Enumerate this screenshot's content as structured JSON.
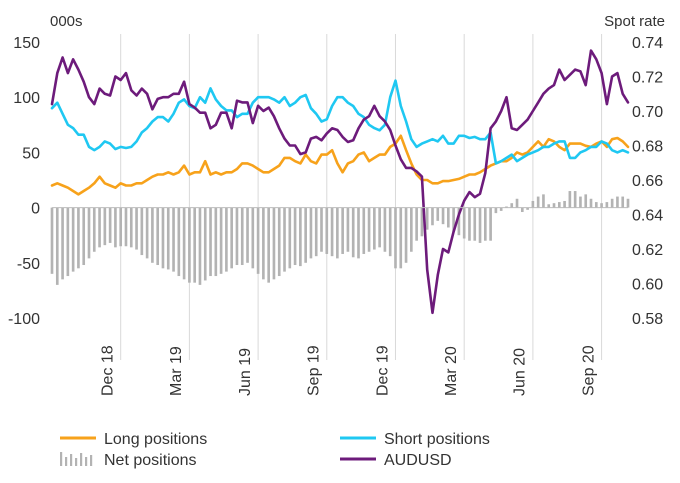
{
  "chart_data": {
    "type": "line",
    "title": "",
    "left_axis": {
      "unit": "000s",
      "ylim": [
        -100,
        150
      ],
      "ticks": [
        -100,
        -50,
        0,
        50,
        100,
        150
      ]
    },
    "right_axis": {
      "unit": "Spot rate",
      "ylim": [
        0.58,
        0.74
      ],
      "ticks": [
        0.58,
        0.6,
        0.62,
        0.64,
        0.66,
        0.68,
        0.7,
        0.72,
        0.74
      ]
    },
    "x_ticks": [
      "Dec 18",
      "Mar 19",
      "Jun 19",
      "Sep 19",
      "Dec 19",
      "Mar 20",
      "Jun 20",
      "Sep 20"
    ],
    "x_tick_positions": [
      10.5,
      23.5,
      36.5,
      49.5,
      62.5,
      75.5,
      88.5,
      101.5
    ],
    "x_range": [
      0,
      109
    ],
    "grid": "vertical",
    "legend_position": "bottom",
    "series": [
      {
        "name": "Long positions",
        "axis": "left",
        "color": "#f7a21b",
        "style": "line",
        "values": [
          20,
          22,
          20,
          18,
          15,
          12,
          15,
          18,
          22,
          28,
          22,
          20,
          18,
          22,
          20,
          20,
          22,
          22,
          25,
          28,
          30,
          30,
          32,
          30,
          32,
          38,
          30,
          32,
          32,
          42,
          30,
          32,
          30,
          32,
          32,
          35,
          40,
          40,
          38,
          35,
          32,
          32,
          35,
          38,
          45,
          45,
          42,
          40,
          48,
          42,
          40,
          48,
          48,
          52,
          40,
          32,
          40,
          42,
          48,
          50,
          42,
          45,
          48,
          48,
          55,
          58,
          65,
          52,
          40,
          30,
          25,
          25,
          22,
          22,
          24,
          24,
          25,
          26,
          28,
          30,
          30,
          32,
          35,
          38,
          40,
          42,
          42,
          45,
          50,
          48,
          50,
          55,
          60,
          55,
          62,
          60,
          55,
          52,
          58,
          58,
          58,
          56,
          55,
          58,
          60,
          55,
          62,
          63,
          60,
          55
        ]
      },
      {
        "name": "Short positions",
        "axis": "left",
        "color": "#1fc8f2",
        "style": "line",
        "values": [
          90,
          95,
          85,
          75,
          72,
          66,
          66,
          55,
          52,
          55,
          60,
          58,
          53,
          55,
          54,
          55,
          60,
          68,
          72,
          78,
          82,
          82,
          78,
          85,
          95,
          98,
          92,
          90,
          100,
          95,
          108,
          98,
          92,
          88,
          88,
          82,
          85,
          85,
          95,
          100,
          100,
          100,
          98,
          95,
          100,
          92,
          95,
          100,
          102,
          90,
          85,
          78,
          80,
          92,
          100,
          100,
          95,
          92,
          85,
          82,
          75,
          72,
          70,
          75,
          100,
          115,
          92,
          78,
          62,
          55,
          58,
          60,
          62,
          60,
          65,
          58,
          58,
          65,
          65,
          63,
          64,
          62,
          62,
          68,
          40,
          42,
          45,
          48,
          42,
          45,
          48,
          50,
          52,
          55,
          55,
          58,
          60,
          60,
          45,
          45,
          50,
          52,
          55,
          55,
          60,
          58,
          52,
          50,
          52,
          50
        ]
      },
      {
        "name": "Net positions",
        "axis": "left",
        "color": "#b3b3b3",
        "style": "bars",
        "values": [
          -60,
          -70,
          -65,
          -62,
          -58,
          -55,
          -52,
          -46,
          -40,
          -36,
          -34,
          -32,
          -36,
          -35,
          -35,
          -36,
          -38,
          -43,
          -46,
          -50,
          -52,
          -55,
          -56,
          -58,
          -62,
          -65,
          -68,
          -68,
          -70,
          -66,
          -62,
          -62,
          -60,
          -58,
          -55,
          -52,
          -52,
          -50,
          -55,
          -60,
          -65,
          -68,
          -65,
          -62,
          -58,
          -55,
          -52,
          -53,
          -50,
          -46,
          -44,
          -40,
          -42,
          -44,
          -46,
          -42,
          -40,
          -45,
          -46,
          -42,
          -40,
          -38,
          -36,
          -40,
          -44,
          -55,
          -55,
          -50,
          -40,
          -30,
          -26,
          -20,
          -16,
          -12,
          -15,
          -18,
          -22,
          -25,
          -28,
          -30,
          -30,
          -32,
          -30,
          -30,
          -5,
          -3,
          1,
          4,
          8,
          -4,
          -2,
          6,
          10,
          12,
          3,
          4,
          5,
          6,
          15,
          15,
          10,
          12,
          8,
          5,
          4,
          5,
          8,
          10,
          10,
          8
        ]
      },
      {
        "name": "AUDUSD",
        "axis": "right",
        "color": "#6d1b7b",
        "style": "line",
        "values": [
          0.704,
          0.722,
          0.731,
          0.722,
          0.73,
          0.724,
          0.717,
          0.708,
          0.704,
          0.713,
          0.71,
          0.709,
          0.72,
          0.718,
          0.722,
          0.712,
          0.709,
          0.713,
          0.71,
          0.701,
          0.707,
          0.708,
          0.708,
          0.71,
          0.71,
          0.717,
          0.704,
          0.702,
          0.699,
          0.699,
          0.69,
          0.692,
          0.699,
          0.699,
          0.69,
          0.706,
          0.705,
          0.705,
          0.693,
          0.703,
          0.7,
          0.702,
          0.697,
          0.69,
          0.684,
          0.68,
          0.68,
          0.675,
          0.676,
          0.684,
          0.685,
          0.683,
          0.687,
          0.69,
          0.689,
          0.685,
          0.682,
          0.683,
          0.69,
          0.695,
          0.697,
          0.703,
          0.697,
          0.694,
          0.689,
          0.68,
          0.672,
          0.667,
          0.667,
          0.665,
          0.662,
          0.608,
          0.583,
          0.605,
          0.62,
          0.618,
          0.63,
          0.64,
          0.648,
          0.653,
          0.65,
          0.652,
          0.664,
          0.69,
          0.694,
          0.7,
          0.708,
          0.69,
          0.689,
          0.692,
          0.695,
          0.7,
          0.705,
          0.71,
          0.713,
          0.715,
          0.724,
          0.718,
          0.721,
          0.724,
          0.723,
          0.715,
          0.735,
          0.73,
          0.722,
          0.704,
          0.72,
          0.722,
          0.71,
          0.705
        ]
      }
    ]
  }
}
